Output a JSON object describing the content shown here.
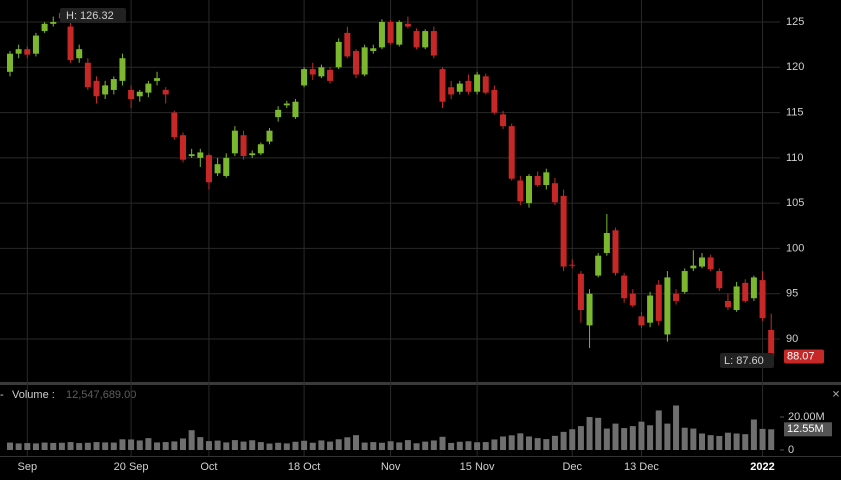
{
  "chart_data": {
    "type": "candlestick",
    "categories": [
      null,
      null,
      "Sep",
      null,
      null,
      null,
      null,
      null,
      null,
      null,
      null,
      null,
      null,
      null,
      "20 Sep",
      null,
      null,
      null,
      null,
      null,
      null,
      null,
      null,
      "Oct",
      null,
      null,
      null,
      null,
      null,
      null,
      null,
      null,
      null,
      null,
      "18 Oct",
      null,
      null,
      null,
      null,
      null,
      null,
      null,
      null,
      null,
      "Nov",
      null,
      null,
      null,
      null,
      null,
      null,
      null,
      null,
      null,
      "15 Nov",
      null,
      null,
      null,
      null,
      null,
      null,
      null,
      null,
      null,
      null,
      "Dec",
      null,
      null,
      null,
      null,
      null,
      null,
      null,
      "13 Dec",
      null,
      null,
      null,
      null,
      null,
      null,
      null,
      null,
      null,
      null,
      null,
      null,
      null,
      "2022",
      null
    ],
    "open": [
      119.5,
      121.5,
      122,
      121.5,
      124,
      124.8,
      126,
      124.5,
      121,
      120.5,
      118.5,
      117,
      117.5,
      118.5,
      117.5,
      116.8,
      117.2,
      118.5,
      117.5,
      115,
      112.5,
      110.2,
      110,
      110.3,
      108.3,
      108,
      110.5,
      112.5,
      110.3,
      110.5,
      111.8,
      114.5,
      115.8,
      114.5,
      118,
      119.8,
      119,
      119.7,
      120,
      123.8,
      121.8,
      119.2,
      121.8,
      122.2,
      125,
      122.5,
      124.8,
      124,
      122.2,
      124,
      119.8,
      117.8,
      117.3,
      118.5,
      117.3,
      119,
      117.5,
      114.8,
      113.5,
      107.5,
      105,
      108,
      107,
      107.2,
      105.8,
      98.2,
      97.2,
      91.5,
      97,
      99.5,
      102,
      97,
      95,
      92.5,
      91.8,
      96,
      90.5,
      95,
      95.2,
      97.8,
      98,
      99,
      97.5,
      94.2,
      93.2,
      96.2,
      94.5,
      96.5,
      91
    ],
    "high": [
      121.8,
      122.5,
      122.3,
      123.8,
      125,
      125.6,
      126.32,
      125,
      122.5,
      121,
      119,
      118.5,
      119,
      121.5,
      118,
      117.5,
      118.5,
      119.5,
      117.8,
      115.2,
      112.8,
      111,
      111,
      110.5,
      110,
      110.5,
      113.5,
      113,
      110.8,
      111.7,
      113.3,
      115.7,
      116.3,
      116.5,
      120,
      120.5,
      120.3,
      120,
      123.2,
      124.5,
      122,
      122.5,
      122.5,
      125.3,
      125.2,
      125.2,
      125.6,
      124.3,
      124.2,
      124.5,
      120,
      118.5,
      118.5,
      119.2,
      119.5,
      119.3,
      118,
      115.2,
      113.8,
      108,
      108.2,
      108.5,
      108.8,
      107.8,
      106.5,
      98.8,
      97.5,
      95.5,
      99.5,
      103.8,
      102.3,
      97.3,
      95.5,
      93,
      95.2,
      96.5,
      97.5,
      95.5,
      97.8,
      99.8,
      99.5,
      99.3,
      97.8,
      95,
      96.3,
      96.6,
      97,
      97.5,
      92.8
    ],
    "low": [
      119,
      121,
      121,
      121.2,
      123.8,
      124.5,
      125,
      120.5,
      120.5,
      117.5,
      116,
      116.5,
      117,
      118,
      115.5,
      116.2,
      116.7,
      118,
      116,
      112,
      109.5,
      110,
      109,
      106.5,
      108,
      107.8,
      110.2,
      109.8,
      110,
      110.3,
      111.5,
      114,
      115.5,
      114.3,
      117.8,
      118.6,
      118.8,
      118.2,
      119.8,
      121,
      118.8,
      119,
      121.5,
      122,
      122.5,
      122.3,
      124.3,
      122,
      122,
      121,
      115.5,
      116.5,
      117,
      117,
      117,
      117,
      114.8,
      113.2,
      107.5,
      104.8,
      104.5,
      106.8,
      106.5,
      104.8,
      97.5,
      97.8,
      91.8,
      89,
      96.8,
      99.2,
      97,
      94,
      93.5,
      91.2,
      91.3,
      91.5,
      89.7,
      93.8,
      95,
      97.5,
      97.8,
      97.5,
      95.3,
      93.2,
      93,
      94,
      94.2,
      92,
      87.6
    ],
    "close": [
      121.5,
      122,
      121.4,
      123.5,
      124.8,
      125,
      125.4,
      120.8,
      122,
      117.8,
      116.8,
      118,
      118.7,
      121,
      116.5,
      117.3,
      118.2,
      118.8,
      117,
      112.3,
      109.8,
      110.4,
      110.6,
      107.3,
      109.3,
      110,
      113,
      110.2,
      110.5,
      111.5,
      113,
      115.3,
      116,
      116.2,
      119.8,
      119.2,
      120,
      118.5,
      122.8,
      121.2,
      119.2,
      122.2,
      122.1,
      125,
      122.7,
      125,
      124.5,
      122.2,
      124,
      121.3,
      116.2,
      117,
      118.2,
      117.3,
      119.2,
      117.2,
      115,
      113.5,
      107.7,
      105.2,
      108,
      107,
      108.4,
      105.1,
      98,
      98.1,
      93.2,
      95,
      99.2,
      101.7,
      97.3,
      94.5,
      93.7,
      91.5,
      94.8,
      92,
      96.8,
      94.2,
      97.5,
      98.1,
      99,
      97.7,
      95.6,
      93.5,
      95.8,
      94.2,
      96.8,
      92.3,
      88.07
    ],
    "up_color": "#7cb82f",
    "down_color": "#c62828",
    "ylim": [
      85.14,
      127.43
    ],
    "yticks": [
      90,
      95,
      100,
      105,
      110,
      115,
      120,
      125
    ],
    "grid": true,
    "high_label": "H: 126.32",
    "low_label": "L: 87.60",
    "volume": {
      "title": "Volume :",
      "value_text": "12,547,689.00",
      "color": "#6f6f6f",
      "ylim": [
        0,
        28500000
      ],
      "yticks": [
        0,
        {
          "value": 20000000,
          "label": "20.00M"
        }
      ],
      "values": [
        4500000,
        4000000,
        4200000,
        4000000,
        4500000,
        4300000,
        4400000,
        4800000,
        4200000,
        4400000,
        4800000,
        4600000,
        4500000,
        6500000,
        6400000,
        5800000,
        7200000,
        4600000,
        4800000,
        5200000,
        7000000,
        12000000,
        7800000,
        5400000,
        5700000,
        4600000,
        6000000,
        5100000,
        5900000,
        4800000,
        3900000,
        4400000,
        4000000,
        5000000,
        5600000,
        4400000,
        5800000,
        5100000,
        6500000,
        7700000,
        9000000,
        4500000,
        4800000,
        4400000,
        5300000,
        4600000,
        6000000,
        4100000,
        5100000,
        5800000,
        8000000,
        4300000,
        5000000,
        5300000,
        4700000,
        4800000,
        6400000,
        8200000,
        8900000,
        10100000,
        8200000,
        7200000,
        6600000,
        8600000,
        11000000,
        12600000,
        14500000,
        20000000,
        19500000,
        13000000,
        16000000,
        13300000,
        14500000,
        17200000,
        15000000,
        24000000,
        16000000,
        27000000,
        13500000,
        13000000,
        10000000,
        9000000,
        8500000,
        10500000,
        10000000,
        9600000,
        18500000,
        12800000,
        12547689
      ],
      "value_labels": [
        null,
        null,
        null,
        null,
        null,
        null,
        null,
        null,
        null,
        null,
        null,
        null,
        null,
        null,
        null,
        null,
        null,
        null,
        null,
        null,
        null,
        null,
        null,
        null,
        null,
        null,
        null,
        null,
        null,
        null,
        null,
        null,
        null,
        null,
        null,
        null,
        null,
        null,
        null,
        null,
        null,
        null,
        null,
        null,
        null,
        null,
        null,
        null,
        null,
        null,
        null,
        null,
        null,
        null,
        null,
        null,
        null,
        null,
        null,
        null,
        null,
        null,
        null,
        null,
        null,
        null,
        null,
        null,
        null,
        null,
        null,
        null,
        null,
        null,
        null,
        null,
        null,
        null,
        null,
        null,
        null,
        null,
        null,
        null,
        null,
        null,
        null,
        null,
        "12.55M"
      ]
    }
  }
}
